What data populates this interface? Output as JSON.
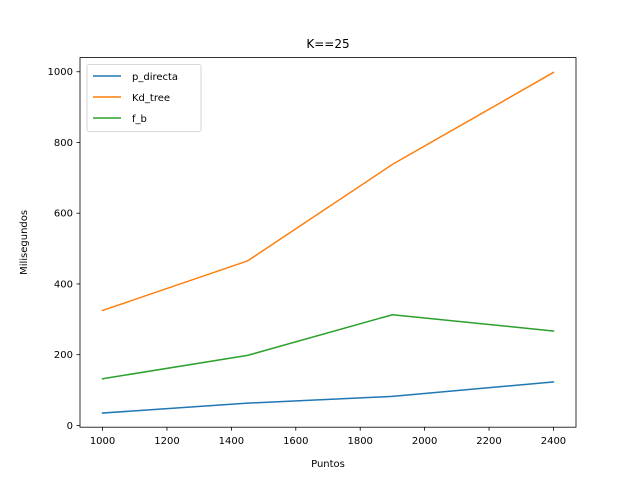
{
  "chart_data": {
    "type": "line",
    "title": "K==25",
    "xlabel": "Puntos",
    "ylabel": "Milisegundos",
    "x": [
      1000,
      1450,
      1900,
      2400
    ],
    "xlim": [
      930,
      2470
    ],
    "ylim": [
      -5,
      1040
    ],
    "xticks": [
      1000,
      1200,
      1400,
      1600,
      1800,
      2000,
      2200,
      2400
    ],
    "yticks": [
      0,
      200,
      400,
      600,
      800,
      1000
    ],
    "grid": false,
    "legend_position": "top-left",
    "series": [
      {
        "name": "p_directa",
        "color": "#1f77b4",
        "values": [
          35,
          63,
          82,
          123
        ]
      },
      {
        "name": "Kd_tree",
        "color": "#ff7f0e",
        "values": [
          325,
          465,
          738,
          998
        ]
      },
      {
        "name": "f_b",
        "color": "#2ca02c",
        "values": [
          132,
          198,
          313,
          267
        ]
      }
    ]
  }
}
